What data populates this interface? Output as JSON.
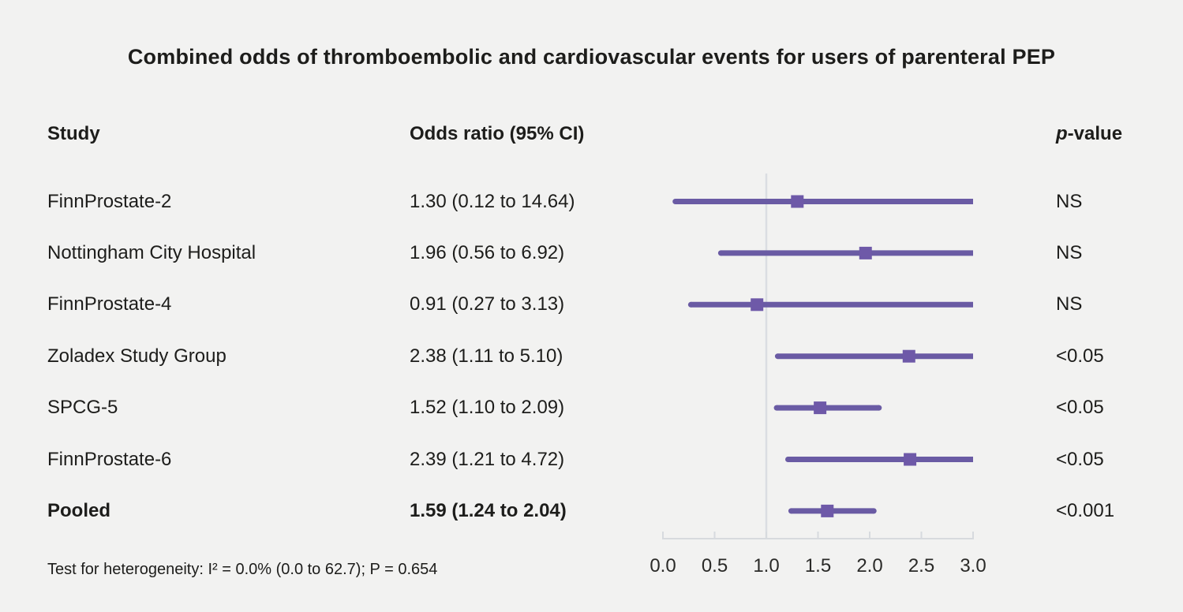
{
  "title": "Combined odds of thromboembolic and cardiovascular events for users of parenteral PEP",
  "columns": {
    "study": "Study",
    "odds_ratio": "Odds ratio (95% CI)",
    "p_value_italic": "p",
    "p_value_rest": "-value"
  },
  "footnote": "Test for heterogeneity: I² = 0.0% (0.0 to 62.7); P = 0.654",
  "colors": {
    "background": "#f2f2f1",
    "text": "#1d1d1b",
    "ci_line": "#6a5ba4",
    "marker": "#6e59a8",
    "axis_line": "#d7dade",
    "reference_line": "#dadde2"
  },
  "chart_data": {
    "type": "forest",
    "orientation": "horizontal",
    "title": "Combined odds of thromboembolic and cardiovascular events for users of parenteral PEP",
    "xlim": [
      0.0,
      3.0
    ],
    "x_ticks": [
      0.0,
      0.5,
      1.0,
      1.5,
      2.0,
      2.5,
      3.0
    ],
    "x_tick_labels": [
      "0.0",
      "0.5",
      "1.0",
      "1.5",
      "2.0",
      "2.5",
      "3.0"
    ],
    "reference_line": 1.0,
    "grid": false,
    "studies": [
      {
        "name": "FinnProstate-2",
        "or_text": "1.30 (0.12 to 14.64)",
        "estimate": 1.3,
        "ci_low": 0.12,
        "ci_high": 14.64,
        "p": "NS",
        "pooled": false
      },
      {
        "name": "Nottingham City Hospital",
        "or_text": "1.96 (0.56 to 6.92)",
        "estimate": 1.96,
        "ci_low": 0.56,
        "ci_high": 6.92,
        "p": "NS",
        "pooled": false
      },
      {
        "name": "FinnProstate-4",
        "or_text": "0.91 (0.27 to 3.13)",
        "estimate": 0.91,
        "ci_low": 0.27,
        "ci_high": 3.13,
        "p": "NS",
        "pooled": false
      },
      {
        "name": "Zoladex Study Group",
        "or_text": "2.38 (1.11 to 5.10)",
        "estimate": 2.38,
        "ci_low": 1.11,
        "ci_high": 5.1,
        "p": "<0.05",
        "pooled": false
      },
      {
        "name": "SPCG-5",
        "or_text": "1.52 (1.10 to 2.09)",
        "estimate": 1.52,
        "ci_low": 1.1,
        "ci_high": 2.09,
        "p": "<0.05",
        "pooled": false
      },
      {
        "name": "FinnProstate-6",
        "or_text": "2.39 (1.21 to 4.72)",
        "estimate": 2.39,
        "ci_low": 1.21,
        "ci_high": 4.72,
        "p": "<0.05",
        "pooled": false
      },
      {
        "name": "Pooled",
        "or_text": "1.59 (1.24 to 2.04)",
        "estimate": 1.59,
        "ci_low": 1.24,
        "ci_high": 2.04,
        "p": "<0.001",
        "pooled": true
      }
    ],
    "footnote": "Test for heterogeneity: I² = 0.0% (0.0 to 62.7); P = 0.654"
  }
}
